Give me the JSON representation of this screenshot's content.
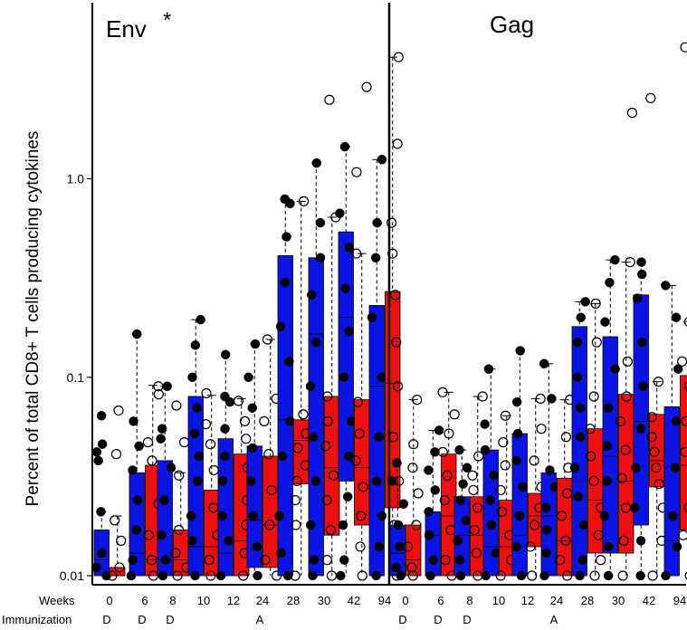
{
  "chart_data": {
    "type": "box",
    "ylabel": "Percent of total CD8+ T cells producing cytokines",
    "y_scale": "log",
    "ylim": [
      0.01,
      5.5
    ],
    "y_ticks": [
      {
        "value": 0.01,
        "label": "0.01"
      },
      {
        "value": 0.1,
        "label": "0.1"
      },
      {
        "value": 1.0,
        "label": "1.0"
      }
    ],
    "row_labels": {
      "weeks": "Weeks",
      "immunization": "Immunization"
    },
    "colors": {
      "series_a": "#0a14e6",
      "series_b": "#ee0f0f",
      "frame": "#000000"
    },
    "panels": [
      {
        "title": "Env",
        "annotation": "*",
        "groups": [
          {
            "week": "0",
            "immunization": "D",
            "a": {
              "q1": 0.01,
              "med": 0.012,
              "q3": 0.017,
              "wlo": 0.01,
              "whi": 0.021,
              "pts": [
                0.064,
                0.046,
                0.042,
                0.038,
                0.021,
                0.013,
                0.011,
                0.01
              ]
            },
            "b": {
              "q1": 0.01,
              "med": 0.01,
              "q3": 0.011,
              "wlo": 0.01,
              "whi": 0.02,
              "pts": [
                0.068,
                0.041,
                0.019,
                0.015,
                0.011,
                0.01
              ]
            }
          },
          {
            "week": "6",
            "immunization": "D",
            "a": {
              "q1": 0.01,
              "med": 0.013,
              "q3": 0.033,
              "wlo": 0.01,
              "whi": 0.165,
              "pts": [
                0.165,
                0.06,
                0.045,
                0.034,
                0.024,
                0.017,
                0.012,
                0.01
              ]
            },
            "b": {
              "q1": 0.01,
              "med": 0.012,
              "q3": 0.036,
              "wlo": 0.01,
              "whi": 0.091,
              "pts": [
                0.09,
                0.082,
                0.047,
                0.038,
                0.023,
                0.016,
                0.012,
                0.01
              ]
            }
          },
          {
            "week": "8",
            "immunization": "D",
            "a": {
              "q1": 0.01,
              "med": 0.012,
              "q3": 0.038,
              "wlo": 0.01,
              "whi": 0.09,
              "pts": [
                0.09,
                0.055,
                0.049,
                0.035,
                0.024,
                0.016,
                0.012,
                0.01
              ]
            },
            "b": {
              "q1": 0.01,
              "med": 0.012,
              "q3": 0.017,
              "wlo": 0.01,
              "whi": 0.033,
              "pts": [
                0.072,
                0.047,
                0.032,
                0.017,
                0.013,
                0.011,
                0.01
              ]
            }
          },
          {
            "week": "10",
            "immunization": "",
            "a": {
              "q1": 0.01,
              "med": 0.014,
              "q3": 0.08,
              "wlo": 0.01,
              "whi": 0.195,
              "pts": [
                0.195,
                0.145,
                0.1,
                0.07,
                0.052,
                0.04,
                0.03,
                0.02,
                0.015,
                0.01
              ]
            },
            "b": {
              "q1": 0.01,
              "med": 0.014,
              "q3": 0.027,
              "wlo": 0.01,
              "whi": 0.081,
              "pts": [
                0.083,
                0.058,
                0.046,
                0.034,
                0.022,
                0.016,
                0.012,
                0.01
              ]
            }
          },
          {
            "week": "12",
            "immunization": "",
            "a": {
              "q1": 0.01,
              "med": 0.013,
              "q3": 0.049,
              "wlo": 0.01,
              "whi": 0.13,
              "pts": [
                0.13,
                0.08,
                0.075,
                0.055,
                0.04,
                0.03,
                0.02,
                0.015,
                0.01
              ]
            },
            "b": {
              "q1": 0.01,
              "med": 0.015,
              "q3": 0.041,
              "wlo": 0.01,
              "whi": 0.078,
              "pts": [
                0.076,
                0.06,
                0.049,
                0.035,
                0.024,
                0.018,
                0.013,
                0.01
              ]
            }
          },
          {
            "week": "24",
            "immunization": "A",
            "a": {
              "q1": 0.011,
              "med": 0.019,
              "q3": 0.045,
              "wlo": 0.01,
              "whi": 0.147,
              "pts": [
                0.147,
                0.1,
                0.07,
                0.044,
                0.03,
                0.02,
                0.014,
                0.01
              ]
            },
            "b": {
              "q1": 0.011,
              "med": 0.018,
              "q3": 0.04,
              "wlo": 0.01,
              "whi": 0.155,
              "pts": [
                0.155,
                0.078,
                0.06,
                0.041,
                0.027,
                0.018,
                0.012,
                0.01
              ]
            }
          },
          {
            "week": "28",
            "immunization": "",
            "a": {
              "q1": 0.01,
              "med": 0.061,
              "q3": 0.41,
              "wlo": 0.01,
              "whi": 0.8,
              "pts": [
                0.79,
                0.75,
                0.51,
                0.3,
                0.18,
                0.12,
                0.06,
                0.04,
                0.02,
                0.013,
                0.01
              ]
            },
            "b": {
              "q1": 0.029,
              "med": 0.048,
              "q3": 0.061,
              "wlo": 0.01,
              "whi": 0.77,
              "pts": [
                0.77,
                0.065,
                0.052,
                0.044,
                0.036,
                0.03,
                0.024,
                0.018,
                0.01
              ]
            }
          },
          {
            "week": "30",
            "immunization": "",
            "a": {
              "q1": 0.01,
              "med": 0.165,
              "q3": 0.4,
              "wlo": 0.01,
              "whi": 1.2,
              "pts": [
                1.2,
                0.6,
                0.4,
                0.26,
                0.15,
                0.09,
                0.05,
                0.03,
                0.018,
                0.012,
                0.01
              ]
            },
            "b": {
              "q1": 0.016,
              "med": 0.035,
              "q3": 0.08,
              "wlo": 0.01,
              "whi": 0.64,
              "pts": [
                2.5,
                0.64,
                0.08,
                0.06,
                0.045,
                0.032,
                0.024,
                0.017,
                0.012,
                0.01
              ]
            }
          },
          {
            "week": "42",
            "immunization": "",
            "a": {
              "q1": 0.03,
              "med": 0.2,
              "q3": 0.54,
              "wlo": 0.01,
              "whi": 1.45,
              "pts": [
                1.45,
                0.67,
                0.45,
                0.28,
                0.17,
                0.1,
                0.06,
                0.04,
                0.025,
                0.018,
                0.012,
                0.01
              ]
            },
            "b": {
              "q1": 0.018,
              "med": 0.035,
              "q3": 0.077,
              "wlo": 0.01,
              "whi": 0.42,
              "pts": [
                2.9,
                1.08,
                0.42,
                0.075,
                0.052,
                0.038,
                0.028,
                0.02,
                0.014,
                0.01
              ]
            }
          },
          {
            "week": "94",
            "immunization": "",
            "a": {
              "q1": 0.01,
              "med": 0.09,
              "q3": 0.23,
              "wlo": 0.01,
              "whi": 1.25,
              "pts": [
                1.25,
                0.6,
                0.4,
                0.2,
                0.1,
                0.05,
                0.03,
                0.02,
                0.014,
                0.01
              ]
            },
            "b": {
              "q1": 0.022,
              "med": 0.093,
              "q3": 0.27,
              "wlo": 0.01,
              "whi": 4.1,
              "pts": [
                4.1,
                1.5,
                0.6,
                0.42,
                0.26,
                0.15,
                0.09,
                0.05,
                0.03,
                0.018,
                0.01
              ]
            }
          }
        ]
      },
      {
        "title": "Gag",
        "annotation": "",
        "groups": [
          {
            "week": "0",
            "immunization": "D",
            "a": {
              "q1": 0.01,
              "med": 0.013,
              "q3": 0.018,
              "wlo": 0.01,
              "whi": 0.037,
              "pts": [
                0.037,
                0.03,
                0.023,
                0.018,
                0.014,
                0.011,
                0.01
              ]
            },
            "b": {
              "q1": 0.01,
              "med": 0.012,
              "q3": 0.018,
              "wlo": 0.01,
              "whi": 0.077,
              "pts": [
                0.077,
                0.046,
                0.035,
                0.026,
                0.018,
                0.014,
                0.011,
                0.01
              ]
            }
          },
          {
            "week": "6",
            "immunization": "D",
            "a": {
              "q1": 0.01,
              "med": 0.016,
              "q3": 0.021,
              "wlo": 0.01,
              "whi": 0.054,
              "pts": [
                0.054,
                0.042,
                0.034,
                0.027,
                0.021,
                0.016,
                0.012,
                0.01
              ]
            },
            "b": {
              "q1": 0.01,
              "med": 0.02,
              "q3": 0.041,
              "wlo": 0.01,
              "whi": 0.084,
              "pts": [
                0.084,
                0.065,
                0.052,
                0.042,
                0.032,
                0.024,
                0.017,
                0.012,
                0.01
              ]
            }
          },
          {
            "week": "8",
            "immunization": "D",
            "a": {
              "q1": 0.01,
              "med": 0.016,
              "q3": 0.025,
              "wlo": 0.01,
              "whi": 0.043,
              "pts": [
                0.043,
                0.035,
                0.029,
                0.024,
                0.019,
                0.015,
                0.012,
                0.01
              ]
            },
            "b": {
              "q1": 0.01,
              "med": 0.016,
              "q3": 0.025,
              "wlo": 0.01,
              "whi": 0.08,
              "pts": [
                0.08,
                0.04,
                0.032,
                0.027,
                0.022,
                0.017,
                0.013,
                0.01
              ]
            }
          },
          {
            "week": "10",
            "immunization": "",
            "a": {
              "q1": 0.01,
              "med": 0.014,
              "q3": 0.043,
              "wlo": 0.01,
              "whi": 0.11,
              "pts": [
                0.11,
                0.058,
                0.043,
                0.032,
                0.024,
                0.018,
                0.013,
                0.01
              ]
            },
            "b": {
              "q1": 0.01,
              "med": 0.014,
              "q3": 0.024,
              "wlo": 0.01,
              "whi": 0.064,
              "pts": [
                0.064,
                0.047,
                0.036,
                0.027,
                0.021,
                0.016,
                0.012,
                0.01
              ]
            }
          },
          {
            "week": "12",
            "immunization": "",
            "a": {
              "q1": 0.01,
              "med": 0.016,
              "q3": 0.052,
              "wlo": 0.01,
              "whi": 0.136,
              "pts": [
                0.136,
                0.075,
                0.052,
                0.038,
                0.028,
                0.02,
                0.014,
                0.01
              ]
            },
            "b": {
              "q1": 0.014,
              "med": 0.02,
              "q3": 0.026,
              "wlo": 0.01,
              "whi": 0.078,
              "pts": [
                0.078,
                0.055,
                0.038,
                0.028,
                0.022,
                0.018,
                0.014,
                0.01
              ]
            }
          },
          {
            "week": "24",
            "immunization": "A",
            "a": {
              "q1": 0.01,
              "med": 0.02,
              "q3": 0.033,
              "wlo": 0.01,
              "whi": 0.117,
              "pts": [
                0.117,
                0.078,
                0.034,
                0.028,
                0.022,
                0.017,
                0.013,
                0.01
              ]
            },
            "b": {
              "q1": 0.01,
              "med": 0.015,
              "q3": 0.031,
              "wlo": 0.01,
              "whi": 0.077,
              "pts": [
                0.077,
                0.05,
                0.035,
                0.026,
                0.02,
                0.015,
                0.012,
                0.01
              ]
            }
          },
          {
            "week": "28",
            "immunization": "",
            "a": {
              "q1": 0.01,
              "med": 0.03,
              "q3": 0.18,
              "wlo": 0.01,
              "whi": 0.24,
              "pts": [
                0.24,
                0.2,
                0.15,
                0.1,
                0.07,
                0.05,
                0.035,
                0.025,
                0.018,
                0.012,
                0.01
              ]
            },
            "b": {
              "q1": 0.013,
              "med": 0.024,
              "q3": 0.055,
              "wlo": 0.01,
              "whi": 0.235,
              "pts": [
                0.235,
                0.15,
                0.08,
                0.055,
                0.04,
                0.03,
                0.022,
                0.016,
                0.012,
                0.01
              ]
            }
          },
          {
            "week": "30",
            "immunization": "",
            "a": {
              "q1": 0.013,
              "med": 0.04,
              "q3": 0.16,
              "wlo": 0.01,
              "whi": 0.39,
              "pts": [
                0.39,
                0.3,
                0.19,
                0.11,
                0.07,
                0.045,
                0.03,
                0.02,
                0.014,
                0.01
              ]
            },
            "b": {
              "q1": 0.013,
              "med": 0.03,
              "q3": 0.082,
              "wlo": 0.01,
              "whi": 0.38,
              "pts": [
                2.15,
                0.38,
                0.12,
                0.08,
                0.06,
                0.043,
                0.031,
                0.022,
                0.015,
                0.01
              ]
            }
          },
          {
            "week": "42",
            "immunization": "",
            "a": {
              "q1": 0.018,
              "med": 0.06,
              "q3": 0.26,
              "wlo": 0.01,
              "whi": 0.38,
              "pts": [
                0.38,
                0.33,
                0.25,
                0.15,
                0.09,
                0.055,
                0.035,
                0.022,
                0.015,
                0.01
              ]
            },
            "b": {
              "q1": 0.028,
              "med": 0.038,
              "q3": 0.065,
              "wlo": 0.01,
              "whi": 0.095,
              "pts": [
                2.55,
                0.095,
                0.063,
                0.05,
                0.042,
                0.035,
                0.029,
                0.022,
                0.015,
                0.01
              ]
            }
          },
          {
            "week": "94",
            "immunization": "",
            "a": {
              "q1": 0.01,
              "med": 0.015,
              "q3": 0.071,
              "wlo": 0.01,
              "whi": 0.29,
              "pts": [
                0.29,
                0.2,
                0.11,
                0.06,
                0.035,
                0.02,
                0.014,
                0.01
              ]
            },
            "b": {
              "q1": 0.017,
              "med": 0.036,
              "q3": 0.102,
              "wlo": 0.01,
              "whi": 0.19,
              "pts": [
                4.6,
                0.19,
                0.12,
                0.09,
                0.06,
                0.042,
                0.03,
                0.022,
                0.016,
                0.01
              ]
            }
          }
        ]
      }
    ]
  }
}
